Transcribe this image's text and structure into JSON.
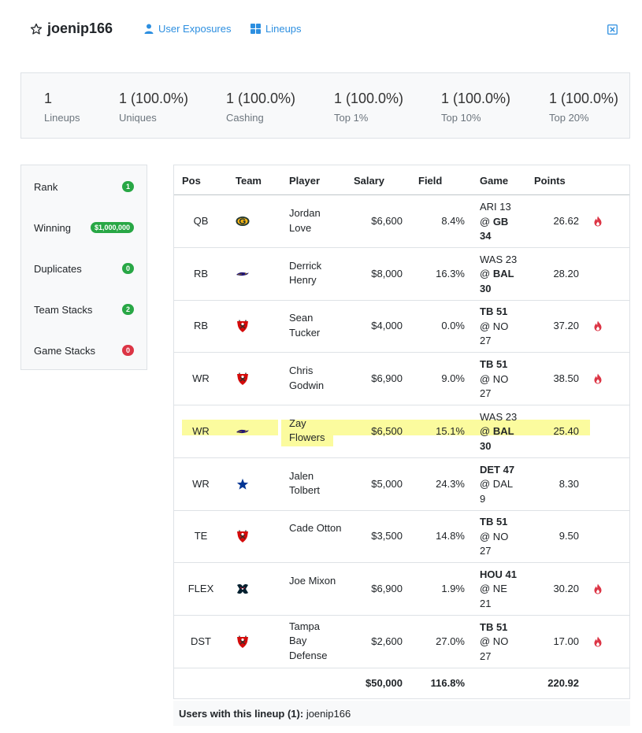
{
  "header": {
    "username": "joenip166",
    "nav": {
      "exposures_label": "User Exposures",
      "lineups_label": "Lineups"
    },
    "link_color": "#2d8fe0"
  },
  "stats": [
    {
      "value": "1",
      "label": "Lineups"
    },
    {
      "value": "1  (100.0%)",
      "label": "Uniques"
    },
    {
      "value": "1  (100.0%)",
      "label": "Cashing"
    },
    {
      "value": "1  (100.0%)",
      "label": "Top 1%"
    },
    {
      "value": "1  (100.0%)",
      "label": "Top 10%"
    },
    {
      "value": "1  (100.0%)",
      "label": "Top 20%"
    }
  ],
  "side": [
    {
      "label": "Rank",
      "badge": "1",
      "badge_color": "green"
    },
    {
      "label": "Winning",
      "badge": "$1,000,000",
      "badge_color": "green"
    },
    {
      "label": "Duplicates",
      "badge": "0",
      "badge_color": "green"
    },
    {
      "label": "Team Stacks",
      "badge": "2",
      "badge_color": "green"
    },
    {
      "label": "Game Stacks",
      "badge": "0",
      "badge_color": "red"
    }
  ],
  "table": {
    "headers": [
      "Pos",
      "Team",
      "Player",
      "Salary",
      "Field",
      "Game",
      "Points"
    ],
    "rows": [
      {
        "pos": "QB",
        "team_icon": "packers-logo-icon",
        "player": "Jordan Love",
        "salary": "$6,600",
        "field": "8.4%",
        "game_pre": "ARI 13",
        "game_mid": "@ ",
        "game_bold": "GB",
        "game_post": "34",
        "game_bold_top": false,
        "points": "26.62",
        "fire": true,
        "highlight": false
      },
      {
        "pos": "RB",
        "team_icon": "ravens-logo-icon",
        "player": "Derrick Henry",
        "salary": "$8,000",
        "field": "16.3%",
        "game_pre": "WAS 23",
        "game_mid": "@ ",
        "game_bold": "BAL",
        "game_post": "30",
        "game_bold_top": false,
        "points": "28.20",
        "fire": false,
        "highlight": false
      },
      {
        "pos": "RB",
        "team_icon": "buccaneers-logo-icon",
        "player": "Sean Tucker",
        "salary": "$4,000",
        "field": "0.0%",
        "game_pre": "TB 51",
        "game_mid": "@ NO",
        "game_bold": "",
        "game_post": "27",
        "game_bold_top": true,
        "points": "37.20",
        "fire": true,
        "highlight": false
      },
      {
        "pos": "WR",
        "team_icon": "buccaneers-logo-icon",
        "player": "Chris Godwin",
        "salary": "$6,900",
        "field": "9.0%",
        "game_pre": "TB 51",
        "game_mid": "@ NO",
        "game_bold": "",
        "game_post": "27",
        "game_bold_top": true,
        "points": "38.50",
        "fire": true,
        "highlight": false
      },
      {
        "pos": "WR",
        "team_icon": "ravens-logo-icon",
        "player": "Zay Flowers",
        "salary": "$6,500",
        "field": "15.1%",
        "game_pre": "WAS 23",
        "game_mid": "@ ",
        "game_bold": "BAL",
        "game_post": "30",
        "game_bold_top": false,
        "points": "25.40",
        "fire": false,
        "highlight": true
      },
      {
        "pos": "WR",
        "team_icon": "cowboys-logo-icon",
        "player": "Jalen Tolbert",
        "salary": "$5,000",
        "field": "24.3%",
        "game_pre": "DET 47",
        "game_mid": "@ DAL",
        "game_bold": "",
        "game_post": "9",
        "game_bold_top": true,
        "points": "8.30",
        "fire": false,
        "highlight": false
      },
      {
        "pos": "TE",
        "team_icon": "buccaneers-logo-icon",
        "player": "Cade Otton",
        "salary": "$3,500",
        "field": "14.8%",
        "game_pre": "TB 51",
        "game_mid": "@ NO",
        "game_bold": "",
        "game_post": "27",
        "game_bold_top": true,
        "points": "9.50",
        "fire": false,
        "highlight": false
      },
      {
        "pos": "FLEX",
        "team_icon": "texans-logo-icon",
        "player": "Joe Mixon",
        "salary": "$6,900",
        "field": "1.9%",
        "game_pre": "HOU 41",
        "game_mid": "@ NE",
        "game_bold": "",
        "game_post": "21",
        "game_bold_top": true,
        "points": "30.20",
        "fire": true,
        "highlight": false
      },
      {
        "pos": "DST",
        "team_icon": "buccaneers-logo-icon",
        "player": "Tampa Bay Defense",
        "salary": "$2,600",
        "field": "27.0%",
        "game_pre": "TB 51",
        "game_mid": "@ NO",
        "game_bold": "",
        "game_post": "27",
        "game_bold_top": true,
        "points": "17.00",
        "fire": true,
        "highlight": false
      }
    ],
    "totals": {
      "salary": "$50,000",
      "field": "116.8%",
      "points": "220.92"
    }
  },
  "users_line": {
    "label": "Users with this lineup (1):",
    "value": "joenip166"
  },
  "colors": {
    "badge_green": "#28a745",
    "badge_red": "#dc3545",
    "fire": "#dc3545",
    "highlight": "#fbfb9e"
  }
}
